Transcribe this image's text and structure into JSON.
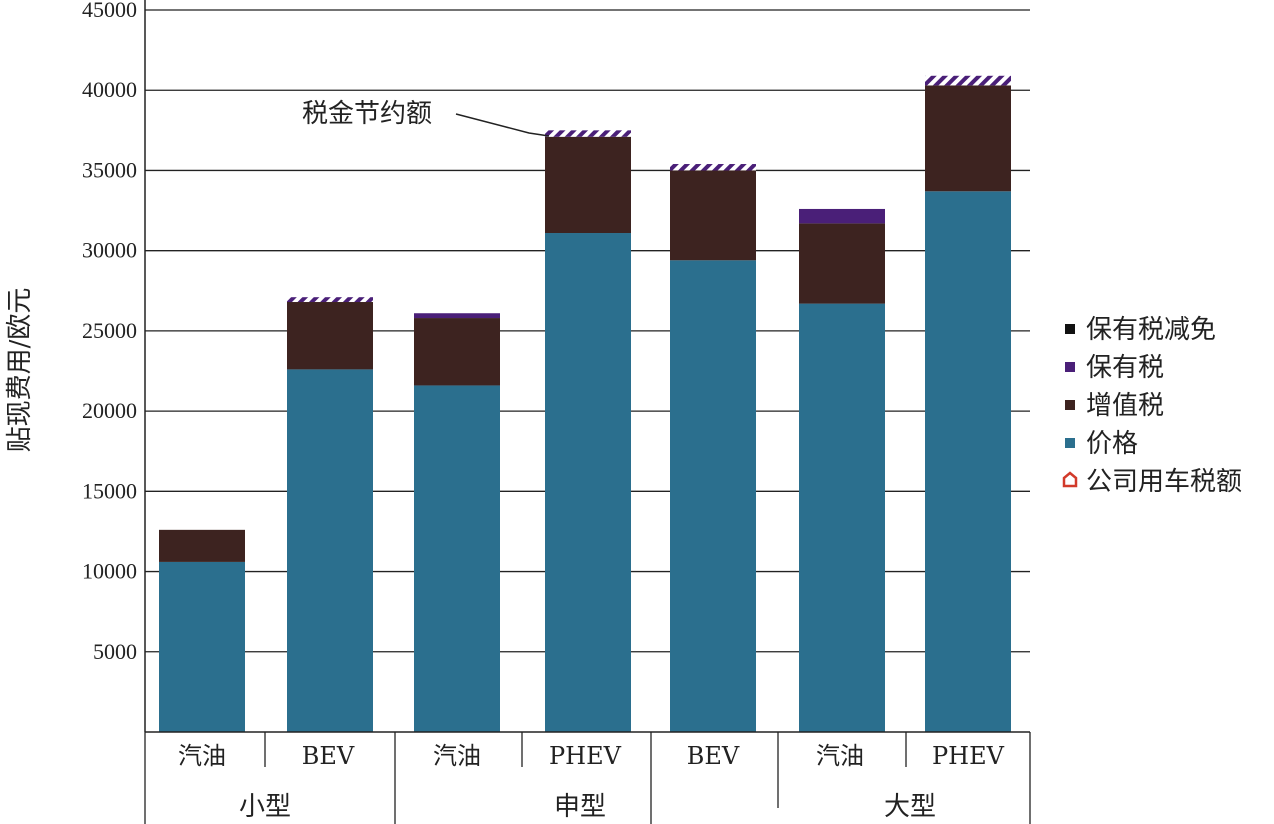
{
  "chart_data": {
    "type": "bar",
    "stacked": true,
    "ylabel": "贴现费用/欧元",
    "ylim": [
      0,
      45000
    ],
    "yticks": [
      5000,
      10000,
      15000,
      20000,
      25000,
      30000,
      35000,
      40000,
      45000
    ],
    "grid": true,
    "legend_position": "right",
    "categories": [
      "汽油",
      "BEV",
      "汽油",
      "PHEV",
      "BEV",
      "汽油",
      "PHEV"
    ],
    "groups": [
      {
        "label": "小型",
        "categories": [
          0,
          1
        ]
      },
      {
        "label": "申型",
        "categories": [
          2,
          3,
          4
        ]
      },
      {
        "label": "大型",
        "categories": [
          5,
          6
        ]
      }
    ],
    "series": [
      {
        "name": "价格",
        "color": "#2b6f8e",
        "values": [
          10600,
          22600,
          21600,
          31100,
          29400,
          26700,
          33700
        ]
      },
      {
        "name": "增值税",
        "color": "#3d2320",
        "values": [
          2000,
          4200,
          4200,
          6000,
          5600,
          5000,
          6600
        ]
      },
      {
        "name": "保有税",
        "color": "#4a1f78",
        "values": [
          0,
          0,
          300,
          0,
          0,
          900,
          0
        ]
      },
      {
        "name": "保有税减免",
        "color": "#4a1f78",
        "pattern": "hatched",
        "values": [
          0,
          300,
          0,
          400,
          400,
          0,
          600
        ]
      },
      {
        "name": "公司用车税额",
        "color": "#d23a2a",
        "values": [
          0,
          0,
          0,
          0,
          0,
          0,
          0
        ]
      }
    ],
    "legend": [
      {
        "name": "保有税减免",
        "color": "#111111",
        "icon": "square"
      },
      {
        "name": "保有税",
        "color": "#4a1f78",
        "icon": "square"
      },
      {
        "name": "增值税",
        "color": "#3d2320",
        "icon": "square"
      },
      {
        "name": "价格",
        "color": "#2b6f8e",
        "icon": "square"
      },
      {
        "name": "公司用车税额",
        "color": "#d23a2a",
        "icon": "outline-house"
      }
    ],
    "annotations": [
      {
        "text": "税金节约额",
        "target_category": 3
      }
    ]
  }
}
